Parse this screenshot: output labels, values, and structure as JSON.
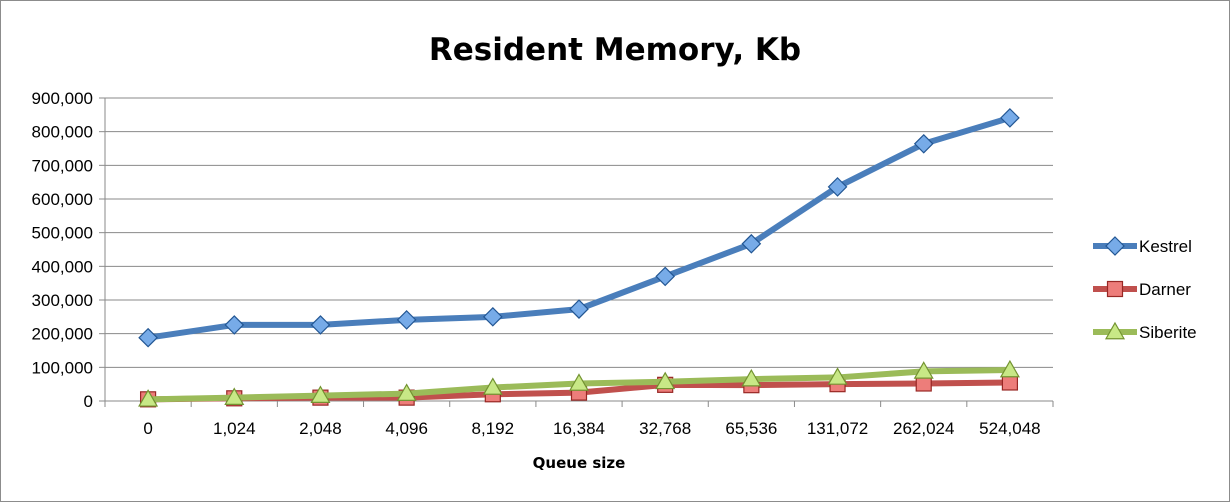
{
  "chart_data": {
    "type": "line",
    "title": "Resident Memory, Kb",
    "xlabel": "Queue size",
    "ylabel": "",
    "categories": [
      "0",
      "1,024",
      "2,048",
      "4,096",
      "8,192",
      "16,384",
      "32,768",
      "65,536",
      "131,072",
      "262,024",
      "524,048"
    ],
    "ylim": [
      0,
      900000
    ],
    "yticks": [
      0,
      100000,
      200000,
      300000,
      400000,
      500000,
      600000,
      700000,
      800000,
      900000
    ],
    "ytick_labels": [
      "0",
      "100,000",
      "200,000",
      "300,000",
      "400,000",
      "500,000",
      "600,000",
      "700,000",
      "800,000",
      "900,000"
    ],
    "grid": true,
    "legend": "right",
    "series": [
      {
        "name": "Kestrel",
        "color": "#4a7ebb",
        "marker": "diamond",
        "values": [
          188000,
          226000,
          226000,
          241000,
          250000,
          273000,
          370000,
          467000,
          636000,
          764000,
          841000
        ]
      },
      {
        "name": "Darner",
        "color": "#c0504d",
        "marker": "square",
        "values": [
          5000,
          8000,
          10000,
          10000,
          20000,
          25000,
          48000,
          47000,
          50000,
          52000,
          55000
        ]
      },
      {
        "name": "Siberite",
        "color": "#9bbb59",
        "marker": "triangle",
        "values": [
          5000,
          10000,
          16000,
          22000,
          40000,
          52000,
          57000,
          65000,
          70000,
          88000,
          92000
        ]
      }
    ]
  }
}
